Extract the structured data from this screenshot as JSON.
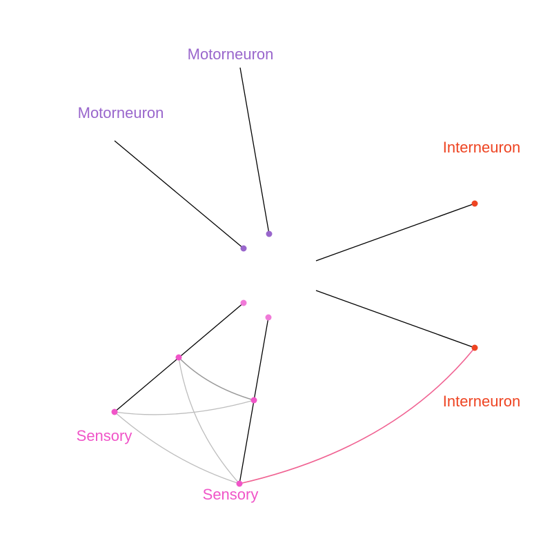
{
  "labels": {
    "motor_top": "Motorneuron",
    "motor_left": "Motorneuron",
    "inter_top": "Interneuron",
    "inter_bottom": "Interneuron",
    "sensory_left": "Sensory",
    "sensory_bottom": "Sensory"
  },
  "colors": {
    "motor": "#9966cc",
    "inter": "#ee4422",
    "sensory": "#f055c8",
    "sensory_light": "#f07ad8",
    "axis": "#000000",
    "chord": "#bdbdbd",
    "chord_dark": "#999999",
    "pink_link": "#f06292"
  }
}
